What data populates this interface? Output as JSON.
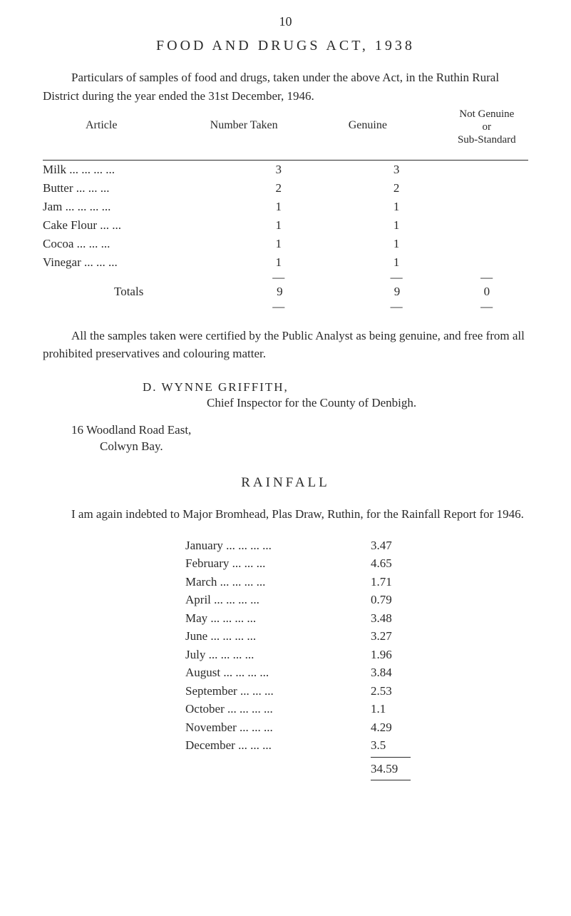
{
  "page_number": "10",
  "title": "FOOD AND DRUGS ACT, 1938",
  "intro_paragraph": "Particulars of samples of food and drugs, taken under the above Act, in the Ruthin Rural District during the year ended the 31st December, 1946.",
  "table": {
    "headers": {
      "article": "Article",
      "number": "Number Taken",
      "genuine": "Genuine",
      "notgenuine_line1": "Not Genuine",
      "notgenuine_line2": "or",
      "notgenuine_line3": "Sub-Standard"
    },
    "rows": [
      {
        "article": "Milk ... ... ... ...",
        "number": "3",
        "genuine": "3",
        "notgenuine": ""
      },
      {
        "article": "Butter    ... ... ...",
        "number": "2",
        "genuine": "2",
        "notgenuine": ""
      },
      {
        "article": "Jam ... ... ... ...",
        "number": "1",
        "genuine": "1",
        "notgenuine": ""
      },
      {
        "article": "Cake Flour    ... ...",
        "number": "1",
        "genuine": "1",
        "notgenuine": ""
      },
      {
        "article": "Cocoa    ... ... ...",
        "number": "1",
        "genuine": "1",
        "notgenuine": ""
      },
      {
        "article": "Vinegar    ... ... ...",
        "number": "1",
        "genuine": "1",
        "notgenuine": ""
      }
    ],
    "totals": {
      "label": "Totals",
      "number": "9",
      "genuine": "9",
      "notgenuine": "0"
    }
  },
  "analyst_paragraph": "All the samples taken were certified by the Public Analyst as being genuine, and free from all prohibited preservatives and colouring matter.",
  "signature": {
    "name": "D. WYNNE GRIFFITH,",
    "title": "Chief Inspector for the County of Denbigh."
  },
  "address": {
    "line1": "16 Woodland Road East,",
    "line2": "Colwyn Bay."
  },
  "rainfall": {
    "heading": "RAINFALL",
    "intro": "I am again indebted to Major Bromhead, Plas Draw, Ruthin, for the Rainfall Report for 1946.",
    "rows": [
      {
        "month": "January ... ... ... ...",
        "value": "3.47"
      },
      {
        "month": "February    ... ... ...",
        "value": "4.65"
      },
      {
        "month": "March    ... ... ... ...",
        "value": "1.71"
      },
      {
        "month": "April    ... ... ... ...",
        "value": "0.79"
      },
      {
        "month": "May    ... ... ... ...",
        "value": "3.48"
      },
      {
        "month": "June    ... ... ... ...",
        "value": "3.27"
      },
      {
        "month": "July    ... ... ... ...",
        "value": "1.96"
      },
      {
        "month": "August ... ... ... ...",
        "value": "3.84"
      },
      {
        "month": "September    ... ... ...",
        "value": "2.53"
      },
      {
        "month": "October ... ... ... ...",
        "value": "1.1"
      },
      {
        "month": "November    ... ... ...",
        "value": "4.29"
      },
      {
        "month": "December    ... ... ...",
        "value": "3.5"
      }
    ],
    "total": "34.59"
  },
  "colors": {
    "background": "#ffffff",
    "text": "#2a2a2a"
  },
  "typography": {
    "body_fontsize": 17,
    "title_fontsize": 20,
    "heading_fontsize": 19,
    "font_family": "Times New Roman"
  }
}
